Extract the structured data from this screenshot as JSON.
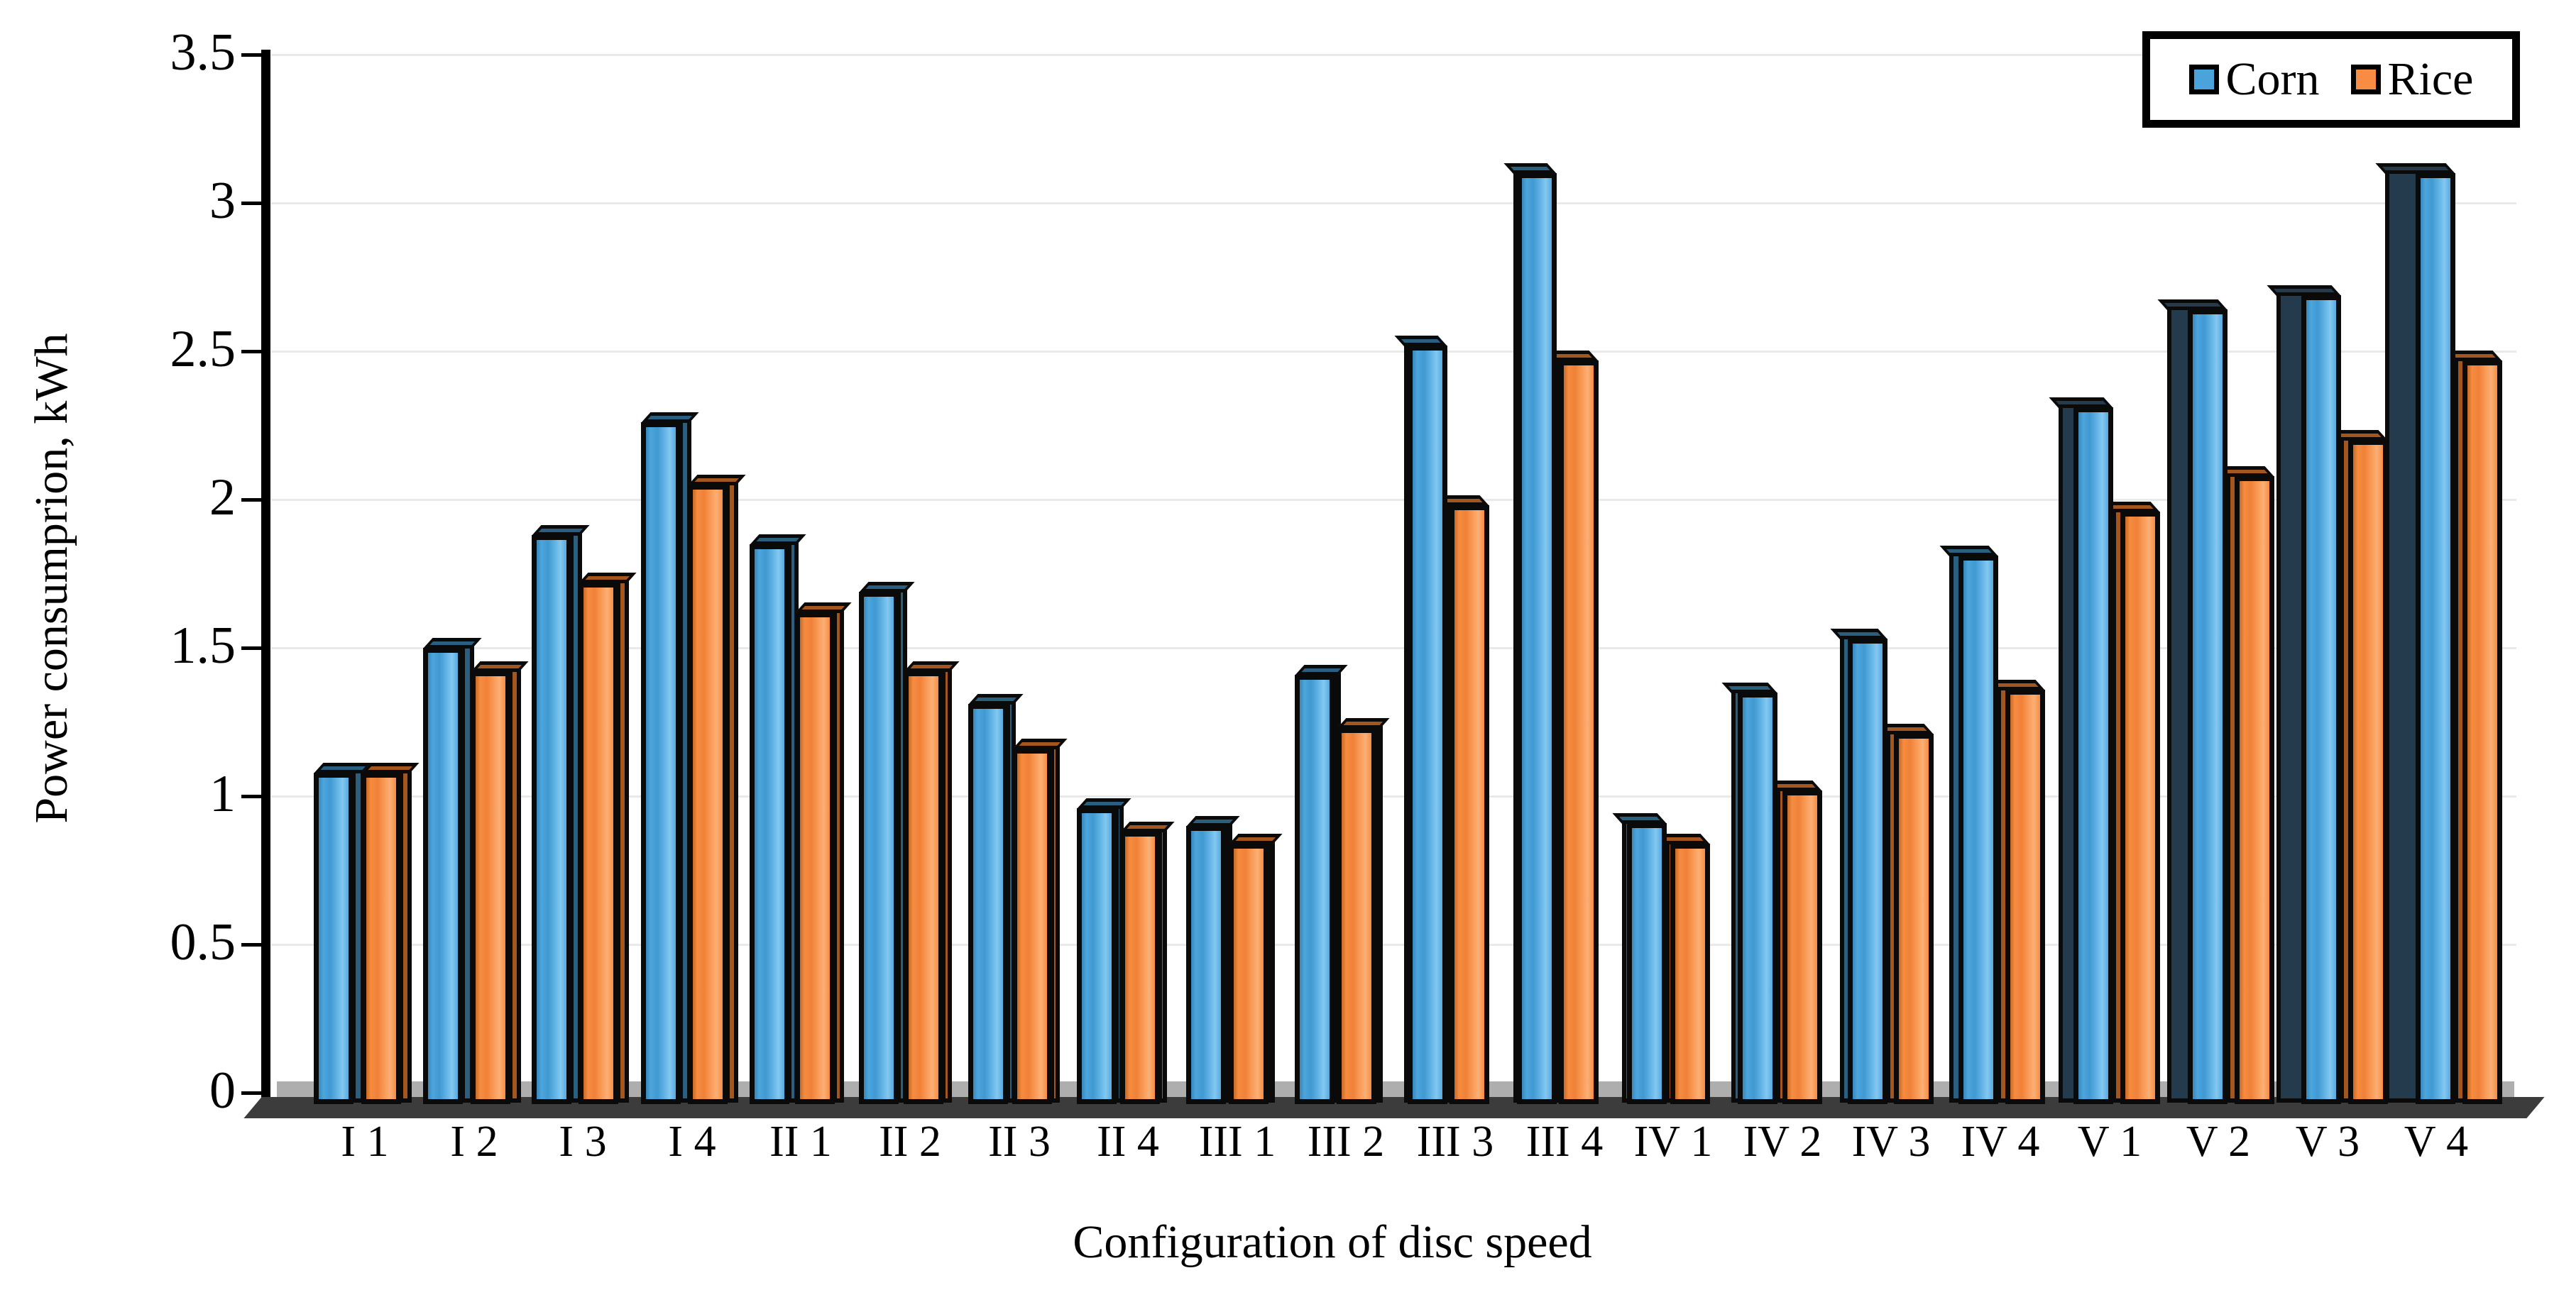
{
  "figure": {
    "y_axis_title": "Power consumprion, kWh",
    "x_axis_title": "Configuration of disc speed",
    "y_tick_labels": [
      "3.5",
      "3",
      "2.5",
      "2",
      "1.5",
      "1",
      "0.5",
      "0"
    ],
    "legend": {
      "corn_label": "Corn",
      "rice_label": "Rice"
    },
    "colors": {
      "corn": "#4ba3db",
      "corn_side": "#2b5f80",
      "corn_side_dark": "#243b4e",
      "rice": "#f78c42",
      "rice_side": "#a3561e",
      "gridline": "#e9e9e9",
      "floor_light": "#aeaeae",
      "floor_dark": "#3c3c3c",
      "outline": "#0a0a0a"
    }
  },
  "chart_data": {
    "type": "bar",
    "style": "3d-clustered-column",
    "title": "",
    "xlabel": "Configuration of disc speed",
    "ylabel": "Power consumprion, kWh",
    "ylim": [
      0,
      3.5
    ],
    "ytick_step": 0.5,
    "grid": true,
    "legend_position": "top-right",
    "categories": [
      "I 1",
      "I 2",
      "I 3",
      "I 4",
      "II 1",
      "II 2",
      "II 3",
      "II 4",
      "III 1",
      "III 2",
      "III 3",
      "III 4",
      "IV 1",
      "IV 2",
      "IV 3",
      "IV 4",
      "V 1",
      "V 2",
      "V 3",
      "V 4"
    ],
    "series": [
      {
        "name": "Corn",
        "color": "#4ba3db",
        "values": [
          1.08,
          1.5,
          1.88,
          2.26,
          1.85,
          1.69,
          1.31,
          0.96,
          0.9,
          1.41,
          2.52,
          3.1,
          0.91,
          1.35,
          1.53,
          1.81,
          2.31,
          2.64,
          2.69,
          3.1
        ]
      },
      {
        "name": "Rice",
        "color": "#f78c42",
        "values": [
          1.08,
          1.42,
          1.72,
          2.05,
          1.62,
          1.42,
          1.16,
          0.88,
          0.84,
          1.23,
          1.98,
          2.47,
          0.84,
          1.02,
          1.21,
          1.36,
          1.96,
          2.08,
          2.2,
          2.47
        ]
      }
    ]
  }
}
